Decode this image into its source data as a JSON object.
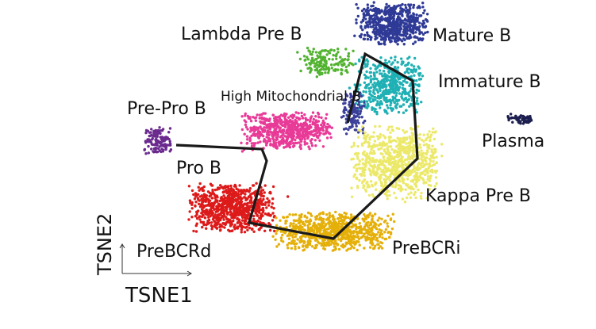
{
  "chart_data": {
    "type": "scatter",
    "title": "",
    "xlabel": "TSNE1",
    "ylabel": "TSNE2",
    "grid": false,
    "legend": "none",
    "clusters": [
      {
        "label": "Mature B",
        "color": "#2e3a96",
        "center": [
          495,
          30
        ],
        "spread": [
          42,
          24
        ],
        "n": 600,
        "label_pos": [
          545,
          52
        ],
        "label_size": 22
      },
      {
        "label": "Immature B",
        "color": "#1fb0b4",
        "center": [
          490,
          108
        ],
        "spread": [
          40,
          34
        ],
        "n": 500,
        "label_pos": [
          552,
          110
        ],
        "label_size": 22
      },
      {
        "label": "Lambda Pre B",
        "color": "#52b331",
        "center": [
          410,
          78
        ],
        "spread": [
          32,
          18
        ],
        "n": 160,
        "label_pos": [
          228,
          50
        ],
        "label_size": 22
      },
      {
        "label": "High Mitochondrial B",
        "color": "#3b3f98",
        "center": [
          445,
          140
        ],
        "spread": [
          14,
          28
        ],
        "n": 120,
        "label_pos": [
          278,
          127
        ],
        "label_size": 17
      },
      {
        "label": "Pre-Pro B",
        "color": "#6a2a8e",
        "center": [
          198,
          178
        ],
        "spread": [
          16,
          16
        ],
        "n": 130,
        "label_pos": [
          160,
          144
        ],
        "label_size": 22
      },
      {
        "label": "Plasma",
        "color": "#1c1f4f",
        "center": [
          655,
          150
        ],
        "spread": [
          14,
          6
        ],
        "n": 60,
        "label_pos": [
          607,
          185
        ],
        "label_size": 22
      },
      {
        "label": "Pro B",
        "color": "#e83a97",
        "center": [
          362,
          165
        ],
        "spread": [
          52,
          22
        ],
        "n": 600,
        "label_pos": [
          222,
          219
        ],
        "label_size": 22
      },
      {
        "label": "Kappa Pre B",
        "color": "#ece96a",
        "center": [
          500,
          205
        ],
        "spread": [
          52,
          42
        ],
        "n": 800,
        "label_pos": [
          536,
          254
        ],
        "label_size": 22
      },
      {
        "label": "PreBCRd",
        "color": "#dd1a1a",
        "center": [
          292,
          262
        ],
        "spread": [
          50,
          28
        ],
        "n": 800,
        "label_pos": [
          172,
          324
        ],
        "label_size": 22
      },
      {
        "label": "PreBCRi",
        "color": "#e5b00a",
        "center": [
          420,
          292
        ],
        "spread": [
          70,
          22
        ],
        "n": 800,
        "label_pos": [
          494,
          320
        ],
        "label_size": 22
      }
    ],
    "trajectory": [
      [
        222,
        183
      ],
      [
        330,
        188
      ],
      [
        336,
        203
      ],
      [
        314,
        281
      ],
      [
        420,
        301
      ],
      [
        526,
        200
      ],
      [
        520,
        102
      ],
      [
        460,
        68
      ],
      [
        438,
        155
      ]
    ]
  }
}
